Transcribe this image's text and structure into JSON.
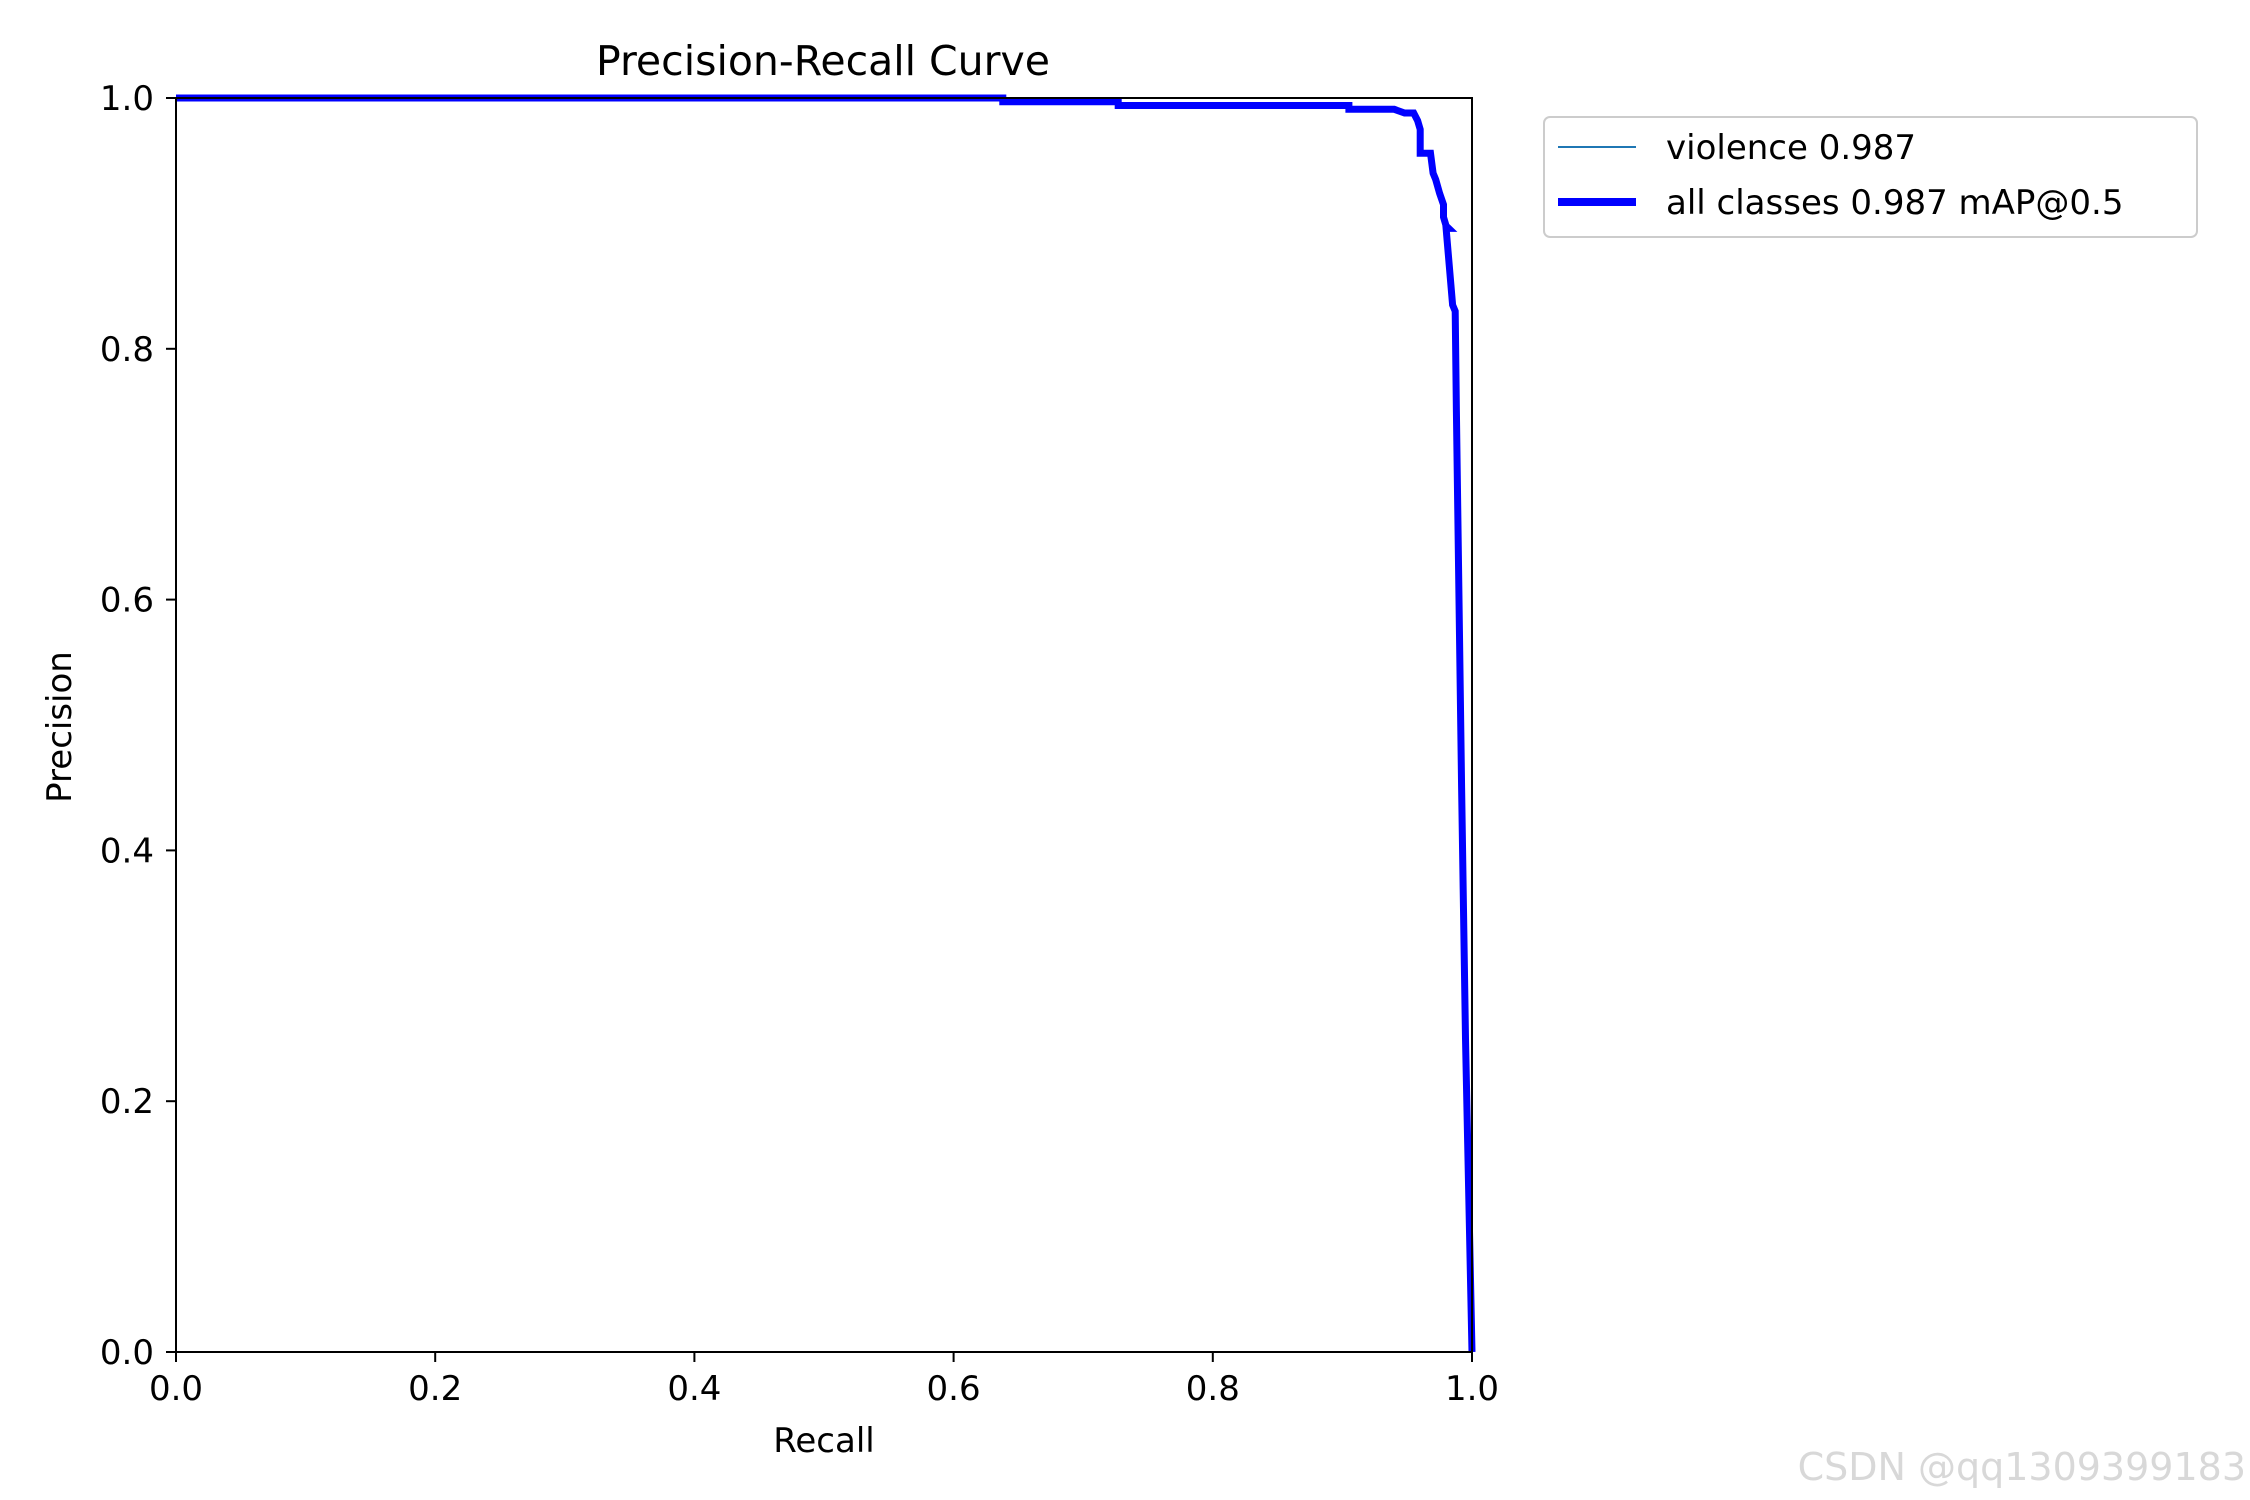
{
  "chart_data": {
    "type": "line",
    "title": "Precision-Recall Curve",
    "xlabel": "Recall",
    "ylabel": "Precision",
    "xlim": [
      0.0,
      1.0
    ],
    "ylim": [
      0.0,
      1.0
    ],
    "xticks": [
      "0.0",
      "0.2",
      "0.4",
      "0.6",
      "0.8",
      "1.0"
    ],
    "yticks": [
      "0.0",
      "0.2",
      "0.4",
      "0.6",
      "0.8",
      "1.0"
    ],
    "grid": false,
    "legend_position": "outside-top-right",
    "series": [
      {
        "name": "violence 0.987",
        "color": "#1f77b4",
        "width": "thin",
        "x": [
          0.0,
          0.638,
          0.638,
          0.727,
          0.727,
          0.905,
          0.905,
          0.94,
          0.948,
          0.955,
          0.958,
          0.96,
          0.96,
          0.968,
          0.97,
          0.972,
          0.975,
          0.978,
          0.978,
          0.98,
          0.982,
          0.98,
          0.985,
          0.987,
          0.988,
          0.99,
          0.992,
          0.995,
          0.998,
          1.0
        ],
        "y": [
          1.0,
          1.0,
          0.997,
          0.997,
          0.994,
          0.994,
          0.991,
          0.991,
          0.988,
          0.988,
          0.982,
          0.975,
          0.956,
          0.956,
          0.94,
          0.935,
          0.924,
          0.915,
          0.905,
          0.898,
          0.896,
          0.896,
          0.835,
          0.83,
          0.75,
          0.6,
          0.45,
          0.25,
          0.1,
          0.0
        ]
      },
      {
        "name": "all classes 0.987 mAP@0.5",
        "color": "#0000ff",
        "width": "thick",
        "x": [
          0.0,
          0.638,
          0.638,
          0.727,
          0.727,
          0.905,
          0.905,
          0.94,
          0.948,
          0.955,
          0.958,
          0.96,
          0.96,
          0.968,
          0.97,
          0.972,
          0.975,
          0.978,
          0.978,
          0.98,
          0.982,
          0.98,
          0.985,
          0.987,
          0.988,
          0.99,
          0.992,
          0.995,
          0.998,
          1.0
        ],
        "y": [
          1.0,
          1.0,
          0.997,
          0.997,
          0.994,
          0.994,
          0.991,
          0.991,
          0.988,
          0.988,
          0.982,
          0.975,
          0.956,
          0.956,
          0.94,
          0.935,
          0.924,
          0.915,
          0.905,
          0.898,
          0.896,
          0.896,
          0.835,
          0.83,
          0.75,
          0.6,
          0.45,
          0.25,
          0.1,
          0.0
        ]
      }
    ]
  },
  "watermark": "CSDN @qq1309399183"
}
